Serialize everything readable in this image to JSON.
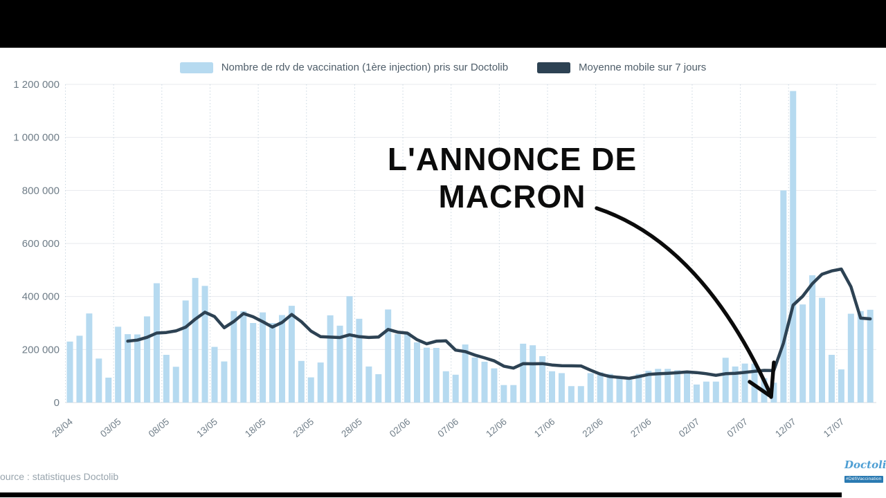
{
  "legend": {
    "items": [
      {
        "label": "Nombre de rdv de vaccination (1ère injection) pris sur Doctolib",
        "color": "#b6daf0"
      },
      {
        "label": "Moyenne mobile sur 7 jours",
        "color": "#2d4253"
      }
    ]
  },
  "annotation": {
    "line1": "L'ANNONCE DE",
    "line2": "MACRON",
    "arrow_points_to": "elbow of the moving-average line just before the 12/07 spike"
  },
  "source_text": "ource : statistiques Doctolib",
  "logo": {
    "brand": "Doctolib",
    "banner": "#DéfiVaccination"
  },
  "chart_data": {
    "type": "bar",
    "title": "",
    "xlabel": "",
    "ylabel": "",
    "ylim": [
      0,
      1200000
    ],
    "grid": {
      "horizontal": true,
      "vertical_dotted_at_ticks": true
    },
    "legend_position": "top",
    "x": [
      "28/04",
      "29/04",
      "30/04",
      "01/05",
      "02/05",
      "03/05",
      "04/05",
      "05/05",
      "06/05",
      "07/05",
      "08/05",
      "09/05",
      "10/05",
      "11/05",
      "12/05",
      "13/05",
      "14/05",
      "15/05",
      "16/05",
      "17/05",
      "18/05",
      "19/05",
      "20/05",
      "21/05",
      "22/05",
      "23/05",
      "24/05",
      "25/05",
      "26/05",
      "27/05",
      "28/05",
      "29/05",
      "30/05",
      "31/05",
      "01/06",
      "02/06",
      "03/06",
      "04/06",
      "05/06",
      "06/06",
      "07/06",
      "08/06",
      "09/06",
      "10/06",
      "11/06",
      "12/06",
      "13/06",
      "14/06",
      "15/06",
      "16/06",
      "17/06",
      "18/06",
      "19/06",
      "20/06",
      "21/06",
      "22/06",
      "23/06",
      "24/06",
      "25/06",
      "26/06",
      "27/06",
      "28/06",
      "29/06",
      "30/06",
      "01/07",
      "02/07",
      "03/07",
      "04/07",
      "05/07",
      "06/07",
      "07/07",
      "08/07",
      "09/07",
      "10/07",
      "11/07",
      "12/07",
      "13/07",
      "14/07",
      "15/07",
      "16/07",
      "17/07",
      "18/07",
      "19/07",
      "20/07"
    ],
    "xtick_indices": [
      0,
      5,
      10,
      15,
      20,
      25,
      30,
      35,
      40,
      45,
      50,
      55,
      60,
      65,
      70,
      75,
      80
    ],
    "yticks": {
      "values": [
        0,
        200000,
        400000,
        600000,
        800000,
        1000000,
        1200000
      ],
      "labels": [
        "0",
        "200 000",
        "400 000",
        "600 000",
        "800 000",
        "1 000 000",
        "1 200 000"
      ]
    },
    "series": [
      {
        "name": "Nombre de rdv de vaccination (1ère injection) pris sur Doctolib",
        "type": "bar",
        "color": "#b6daf0",
        "values": [
          230000,
          252000,
          336000,
          166000,
          94000,
          286000,
          258000,
          257000,
          325000,
          450000,
          180000,
          135000,
          385000,
          470000,
          440000,
          210000,
          155000,
          345000,
          345000,
          300000,
          340000,
          300000,
          330000,
          365000,
          157000,
          95000,
          151000,
          329000,
          290000,
          401000,
          316000,
          136000,
          107000,
          351000,
          258000,
          264000,
          227000,
          207000,
          206000,
          118000,
          105000,
          219000,
          170000,
          154000,
          129000,
          66000,
          66000,
          222000,
          216000,
          175000,
          118000,
          111000,
          62000,
          62000,
          111000,
          114000,
          108000,
          97000,
          86000,
          108000,
          120000,
          127000,
          127000,
          122000,
          118000,
          68000,
          79000,
          79000,
          169000,
          136000,
          147000,
          147000,
          92000,
          75000,
          800000,
          1175000,
          370000,
          480000,
          395000,
          180000,
          125000,
          335000,
          345000,
          350000
        ]
      },
      {
        "name": "Moyenne mobile sur 7 jours",
        "type": "line",
        "color": "#2d4253",
        "derived": "trailing-7-day-mean-of-series-0",
        "starts_at_index": 6
      }
    ]
  }
}
